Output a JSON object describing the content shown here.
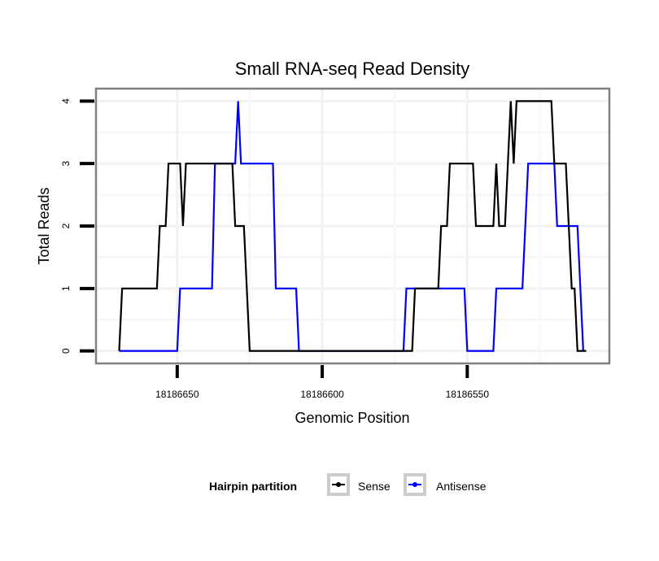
{
  "chart_data": {
    "type": "line",
    "title": "Small RNA-seq Read Density",
    "xlabel": "Genomic Position",
    "ylabel": "Total Reads",
    "x_reversed": true,
    "xlim": [
      18186678,
      18186501
    ],
    "ylim": [
      -0.2,
      4.2
    ],
    "xticks": [
      18186650,
      18186600,
      18186550
    ],
    "xtick_labels": [
      "18186650",
      "18186600",
      "18186550"
    ],
    "yticks": [
      0,
      1,
      2,
      3,
      4
    ],
    "ytick_labels": [
      "0",
      "1",
      "2",
      "3",
      "4"
    ],
    "grid": true,
    "legend": {
      "title": "Hairpin partition",
      "position": "bottom",
      "entries": [
        "Sense",
        "Antisense"
      ]
    },
    "series": [
      {
        "name": "Sense",
        "color": "#000000",
        "x": [
          18186670,
          18186669,
          18186657,
          18186656,
          18186654,
          18186653,
          18186649,
          18186648,
          18186647,
          18186631,
          18186630,
          18186627,
          18186625,
          18186569,
          18186568,
          18186560,
          18186559,
          18186557,
          18186556,
          18186548,
          18186547,
          18186541,
          18186540,
          18186539,
          18186537,
          18186535,
          18186534,
          18186533,
          18186521,
          18186520,
          18186516,
          18186514,
          18186513,
          18186512,
          18186509
        ],
        "y": [
          0,
          1,
          1,
          2,
          2,
          3,
          3,
          2,
          3,
          3,
          2,
          2,
          0,
          0,
          1,
          1,
          2,
          2,
          3,
          3,
          2,
          2,
          3,
          2,
          2,
          4,
          3,
          4,
          4,
          3,
          3,
          1,
          1,
          0,
          0
        ]
      },
      {
        "name": "Antisense",
        "color": "#0000ff",
        "x": [
          18186670,
          18186650,
          18186649,
          18186638,
          18186637,
          18186630,
          18186629,
          18186628,
          18186617,
          18186616,
          18186609,
          18186608,
          18186572,
          18186571,
          18186551,
          18186550,
          18186541,
          18186540,
          18186531,
          18186529,
          18186520,
          18186519,
          18186512,
          18186510
        ],
        "y": [
          0,
          0,
          1,
          1,
          3,
          3,
          4,
          3,
          3,
          1,
          1,
          0,
          0,
          1,
          1,
          0,
          0,
          1,
          1,
          3,
          3,
          2,
          2,
          0
        ]
      }
    ]
  }
}
